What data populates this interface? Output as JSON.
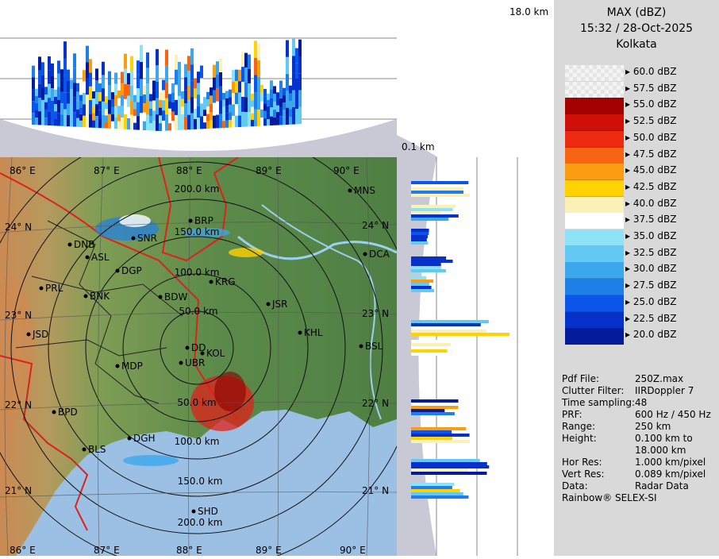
{
  "legend": {
    "title": "MAX (dBZ)",
    "time": "15:32 / 28-Oct-2025",
    "site": "Kolkata",
    "levels": [
      {
        "label": "60.0 dBZ",
        "color": ""
      },
      {
        "label": "57.5 dBZ",
        "color": ""
      },
      {
        "label": "55.0 dBZ",
        "color": "#a30000"
      },
      {
        "label": "52.5 dBZ",
        "color": "#d01008"
      },
      {
        "label": "50.0 dBZ",
        "color": "#ee2a10"
      },
      {
        "label": "47.5 dBZ",
        "color": "#f76514"
      },
      {
        "label": "45.0 dBZ",
        "color": "#fb9d10"
      },
      {
        "label": "42.5 dBZ",
        "color": "#ffd200"
      },
      {
        "label": "40.0 dBZ",
        "color": "#fbf0b5"
      },
      {
        "label": "37.5 dBZ",
        "color": "#ffffff"
      },
      {
        "label": "35.0 dBZ",
        "color": "#8de2f5"
      },
      {
        "label": "32.5 dBZ",
        "color": "#62c8f4"
      },
      {
        "label": "30.0 dBZ",
        "color": "#3da7ee"
      },
      {
        "label": "27.5 dBZ",
        "color": "#1e7fe8"
      },
      {
        "label": "25.0 dBZ",
        "color": "#0b55ea"
      },
      {
        "label": "22.5 dBZ",
        "color": "#0732c9"
      },
      {
        "label": "20.0 dBZ",
        "color": "#041c9c"
      }
    ]
  },
  "info": [
    {
      "key": "Pdf File:",
      "value": "250Z.max"
    },
    {
      "key": "Clutter Filter:",
      "value": "IIRDoppler 7"
    },
    {
      "key": "Time sampling:",
      "value": "48"
    },
    {
      "key": "PRF:",
      "value": "600 Hz / 450 Hz"
    },
    {
      "key": "Range:",
      "value": "250 km"
    },
    {
      "key": "Height:",
      "value": "0.100 km to"
    },
    {
      "key": "",
      "value": "18.000 km"
    },
    {
      "key": "Hor Res:",
      "value": "1.000 km/pixel"
    },
    {
      "key": "Vert Res:",
      "value": "0.089 km/pixel"
    },
    {
      "key": "Data:",
      "value": "Radar Data"
    }
  ],
  "footer": "Rainbow® SELEX-SI",
  "height_top": "18.0 km",
  "height_bottom": "0.1 km",
  "map": {
    "longitudes": [
      "86° E",
      "87° E",
      "88° E",
      "89° E",
      "90° E"
    ],
    "latitudes": [
      "24° N",
      "23° N",
      "22° N",
      "21° N"
    ],
    "range_rings": [
      "50.0 km",
      "100.0 km",
      "150.0 km",
      "200.0 km"
    ],
    "range_rings_lower": [
      "50.0 km",
      "100.0 km",
      "150.0 km",
      "200.0 km"
    ],
    "stations": [
      "MNS",
      "BRP",
      "DNB",
      "SNR",
      "ASL",
      "DCA",
      "DGP",
      "KRG",
      "PRL",
      "BNK",
      "BDW",
      "JSR",
      "KHL",
      "JSD",
      "DD",
      "KOL",
      "UBR",
      "BSL",
      "MDP",
      "BPD",
      "DGH",
      "BLS",
      "SHD"
    ]
  },
  "colors": {
    "land_green": "#5c8c4c",
    "land_brown": "#c28c58",
    "sea": "#9cc0e4",
    "border_red": "#e0201a"
  }
}
